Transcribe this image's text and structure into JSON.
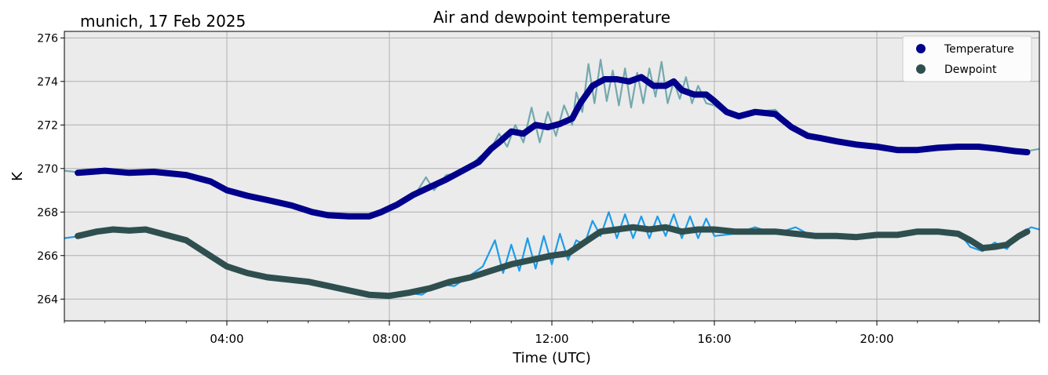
{
  "chart_data": {
    "type": "line",
    "title": "Air and dewpoint temperature",
    "subtitle": "munich, 17 Feb 2025",
    "xlabel": "Time (UTC)",
    "ylabel": "K",
    "xlim": [
      0,
      24
    ],
    "ylim": [
      263,
      276.3
    ],
    "x_ticks": [
      4,
      8,
      12,
      16,
      20
    ],
    "x_tick_labels": [
      "04:00",
      "08:00",
      "12:00",
      "16:00",
      "20:00"
    ],
    "y_ticks": [
      264,
      266,
      268,
      270,
      272,
      274,
      276
    ],
    "y_tick_labels": [
      "264",
      "266",
      "268",
      "270",
      "272",
      "274",
      "276"
    ],
    "grid": true,
    "legend_position": "top-right",
    "legend": [
      {
        "name": "Temperature",
        "color": "#00008b"
      },
      {
        "name": "Dewpoint",
        "color": "#2f4f4f"
      }
    ],
    "colors": {
      "background": "#ebebeb",
      "grid": "#b0b0b0",
      "temperature_smooth": "#00008b",
      "temperature_raw": "#74a8ae",
      "dewpoint_smooth": "#2f4f4f",
      "dewpoint_raw": "#1f9be8"
    },
    "series": [
      {
        "name": "Temperature",
        "role": "smoothed",
        "x": [
          0.33,
          1.0,
          1.6,
          2.2,
          3.0,
          3.6,
          4.0,
          4.5,
          5.0,
          5.6,
          6.1,
          6.5,
          7.0,
          7.5,
          7.8,
          8.2,
          8.6,
          9.0,
          9.4,
          9.8,
          10.2,
          10.5,
          10.7,
          11.0,
          11.3,
          11.6,
          11.9,
          12.2,
          12.5,
          12.7,
          13.0,
          13.3,
          13.6,
          13.9,
          14.2,
          14.5,
          14.8,
          15.0,
          15.2,
          15.5,
          15.8,
          16.0,
          16.3,
          16.6,
          17.0,
          17.5,
          17.9,
          18.3,
          18.6,
          19.0,
          19.5,
          20.0,
          20.5,
          21.0,
          21.5,
          22.0,
          22.5,
          23.0,
          23.4,
          23.7
        ],
        "y": [
          269.8,
          269.9,
          269.8,
          269.85,
          269.7,
          269.4,
          269.0,
          268.75,
          268.55,
          268.3,
          268.0,
          267.85,
          267.8,
          267.8,
          268.0,
          268.35,
          268.8,
          269.15,
          269.5,
          269.9,
          270.3,
          270.9,
          271.2,
          271.7,
          271.6,
          272.0,
          271.9,
          272.05,
          272.3,
          273.0,
          273.8,
          274.1,
          274.1,
          274.0,
          274.2,
          273.8,
          273.8,
          274.0,
          273.6,
          273.4,
          273.4,
          273.1,
          272.6,
          272.4,
          272.6,
          272.5,
          271.9,
          271.5,
          271.4,
          271.25,
          271.1,
          271.0,
          270.85,
          270.85,
          270.95,
          271.0,
          271.0,
          270.9,
          270.8,
          270.75
        ]
      },
      {
        "name": "Dewpoint",
        "role": "smoothed",
        "x": [
          0.33,
          0.8,
          1.2,
          1.6,
          2.0,
          2.4,
          3.0,
          3.5,
          4.0,
          4.5,
          5.0,
          5.5,
          6.0,
          6.5,
          7.0,
          7.5,
          8.0,
          8.5,
          9.0,
          9.5,
          10.0,
          10.5,
          11.0,
          11.5,
          12.0,
          12.4,
          12.8,
          13.2,
          13.6,
          14.0,
          14.4,
          14.8,
          15.2,
          15.6,
          16.0,
          16.5,
          17.0,
          17.5,
          18.0,
          18.5,
          19.0,
          19.5,
          20.0,
          20.5,
          21.0,
          21.5,
          22.0,
          22.3,
          22.6,
          22.9,
          23.2,
          23.5,
          23.7
        ],
        "y": [
          266.9,
          267.1,
          267.2,
          267.15,
          267.2,
          267.0,
          266.7,
          266.1,
          265.5,
          265.2,
          265.0,
          264.9,
          264.8,
          264.6,
          264.4,
          264.2,
          264.15,
          264.3,
          264.5,
          264.8,
          265.0,
          265.3,
          265.6,
          265.8,
          266.0,
          266.1,
          266.6,
          267.1,
          267.2,
          267.3,
          267.2,
          267.3,
          267.1,
          267.2,
          267.2,
          267.1,
          267.1,
          267.1,
          267.0,
          266.9,
          266.9,
          266.85,
          266.95,
          266.95,
          267.1,
          267.1,
          267.0,
          266.7,
          266.35,
          266.4,
          266.5,
          266.9,
          267.1
        ]
      },
      {
        "name": "",
        "role": "raw-temperature",
        "x": [
          0.0,
          0.5,
          1.0,
          1.6,
          2.2,
          3.0,
          3.6,
          4.0,
          4.5,
          5.0,
          5.6,
          6.1,
          6.5,
          7.0,
          7.5,
          7.8,
          8.2,
          8.6,
          8.9,
          9.1,
          9.4,
          9.8,
          10.2,
          10.5,
          10.7,
          10.9,
          11.1,
          11.3,
          11.5,
          11.7,
          11.9,
          12.1,
          12.3,
          12.5,
          12.6,
          12.75,
          12.9,
          13.05,
          13.2,
          13.35,
          13.5,
          13.65,
          13.8,
          13.95,
          14.1,
          14.25,
          14.4,
          14.55,
          14.7,
          14.85,
          15.0,
          15.15,
          15.3,
          15.45,
          15.6,
          15.8,
          16.0,
          16.3,
          16.6,
          17.0,
          17.5,
          17.9,
          18.3,
          18.6,
          19.0,
          19.5,
          20.0,
          20.5,
          21.0,
          21.5,
          22.0,
          22.5,
          23.0,
          23.4,
          23.7,
          24.0
        ],
        "y": [
          269.9,
          269.8,
          269.95,
          269.8,
          269.85,
          269.7,
          269.4,
          269.0,
          268.75,
          268.55,
          268.3,
          268.0,
          267.9,
          267.75,
          267.7,
          268.0,
          268.35,
          268.7,
          269.6,
          269.0,
          269.7,
          269.8,
          270.5,
          270.9,
          271.6,
          271.0,
          272.0,
          271.2,
          272.8,
          271.2,
          272.6,
          271.5,
          272.9,
          272.0,
          273.5,
          272.6,
          274.8,
          273.0,
          275.0,
          273.1,
          274.5,
          272.9,
          274.6,
          272.8,
          274.4,
          273.0,
          274.6,
          273.3,
          274.9,
          273.0,
          274.0,
          273.2,
          274.2,
          273.0,
          273.8,
          273.0,
          272.9,
          272.5,
          272.4,
          272.6,
          272.7,
          271.9,
          271.5,
          271.4,
          271.25,
          271.1,
          271.0,
          270.85,
          270.85,
          270.95,
          271.05,
          271.0,
          270.9,
          270.8,
          270.8,
          270.9
        ]
      },
      {
        "name": "",
        "role": "raw-dewpoint",
        "x": [
          0.0,
          0.4,
          0.8,
          1.2,
          1.6,
          2.0,
          2.4,
          3.0,
          3.5,
          4.0,
          4.5,
          5.0,
          5.5,
          6.0,
          6.5,
          7.0,
          7.5,
          8.0,
          8.4,
          8.8,
          9.2,
          9.6,
          10.0,
          10.3,
          10.6,
          10.8,
          11.0,
          11.2,
          11.4,
          11.6,
          11.8,
          12.0,
          12.2,
          12.4,
          12.6,
          12.8,
          13.0,
          13.2,
          13.4,
          13.6,
          13.8,
          14.0,
          14.2,
          14.4,
          14.6,
          14.8,
          15.0,
          15.2,
          15.4,
          15.6,
          15.8,
          16.0,
          16.5,
          17.0,
          17.5,
          18.0,
          18.5,
          19.0,
          19.5,
          20.0,
          20.5,
          21.0,
          21.5,
          22.0,
          22.3,
          22.6,
          22.9,
          23.2,
          23.5,
          23.8,
          24.0
        ],
        "y": [
          266.8,
          266.9,
          267.2,
          267.3,
          267.1,
          267.3,
          266.9,
          266.6,
          266.0,
          265.4,
          265.3,
          264.9,
          264.9,
          264.8,
          264.6,
          264.4,
          264.2,
          264.1,
          264.3,
          264.2,
          264.7,
          264.6,
          265.1,
          265.5,
          266.7,
          265.2,
          266.5,
          265.3,
          266.8,
          265.4,
          266.9,
          265.6,
          267.0,
          265.8,
          266.7,
          266.5,
          267.6,
          266.9,
          268.0,
          266.8,
          267.9,
          266.8,
          267.8,
          266.8,
          267.8,
          266.9,
          267.9,
          266.8,
          267.8,
          266.8,
          267.7,
          266.9,
          267.0,
          267.3,
          267.0,
          267.3,
          266.8,
          267.0,
          266.8,
          267.0,
          266.9,
          267.2,
          267.1,
          267.1,
          266.4,
          266.2,
          266.6,
          266.3,
          267.0,
          267.3,
          267.2
        ]
      }
    ]
  }
}
